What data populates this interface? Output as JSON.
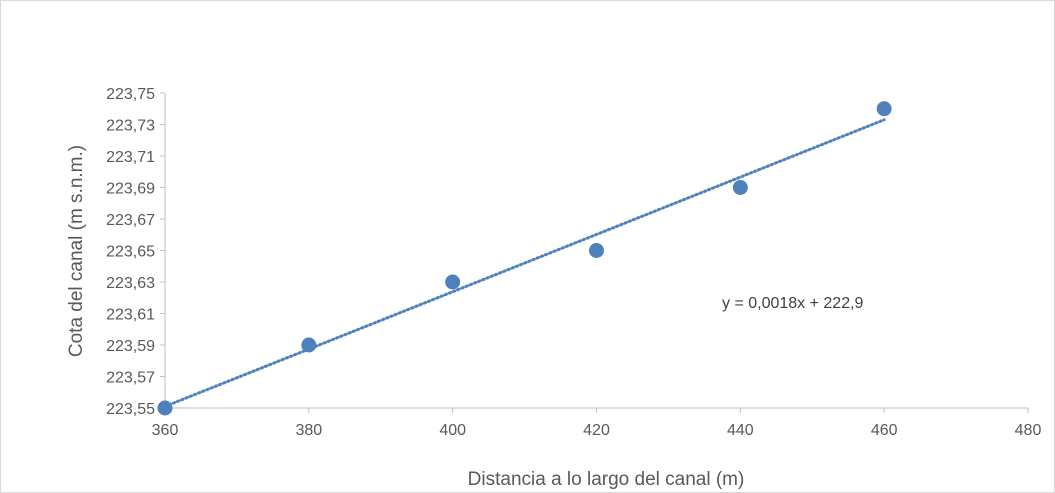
{
  "chart_data": {
    "type": "scatter",
    "title": "",
    "xlabel": "Distancia a lo largo del canal (m)",
    "ylabel": "Cota del canal (m s.n.m.)",
    "xlim": [
      360,
      480
    ],
    "ylim": [
      223.55,
      223.75
    ],
    "xticks": [
      360,
      380,
      400,
      420,
      440,
      460,
      480
    ],
    "xtick_labels": [
      "360",
      "380",
      "400",
      "420",
      "440",
      "460",
      "480"
    ],
    "yticks": [
      223.55,
      223.57,
      223.59,
      223.61,
      223.63,
      223.65,
      223.67,
      223.69,
      223.71,
      223.73,
      223.75
    ],
    "ytick_labels": [
      "223,55",
      "223,57",
      "223,59",
      "223,61",
      "223,63",
      "223,65",
      "223,67",
      "223,69",
      "223,71",
      "223,73",
      "223,75"
    ],
    "grid": false,
    "legend": "none",
    "series": [
      {
        "x": [
          360,
          380,
          400,
          420,
          440,
          460
        ],
        "y": [
          223.55,
          223.59,
          223.63,
          223.65,
          223.69,
          223.74
        ],
        "color": "#4f81bd"
      }
    ],
    "trendline": {
      "type": "linear",
      "style": "dotted",
      "color": "#4f81bd",
      "x_range": [
        360,
        460
      ],
      "slope": 0.0018,
      "intercept": 222.9,
      "fit_y": [
        223.551,
        223.733
      ],
      "equation_label": "y = 0,0018x + 222,9"
    }
  }
}
